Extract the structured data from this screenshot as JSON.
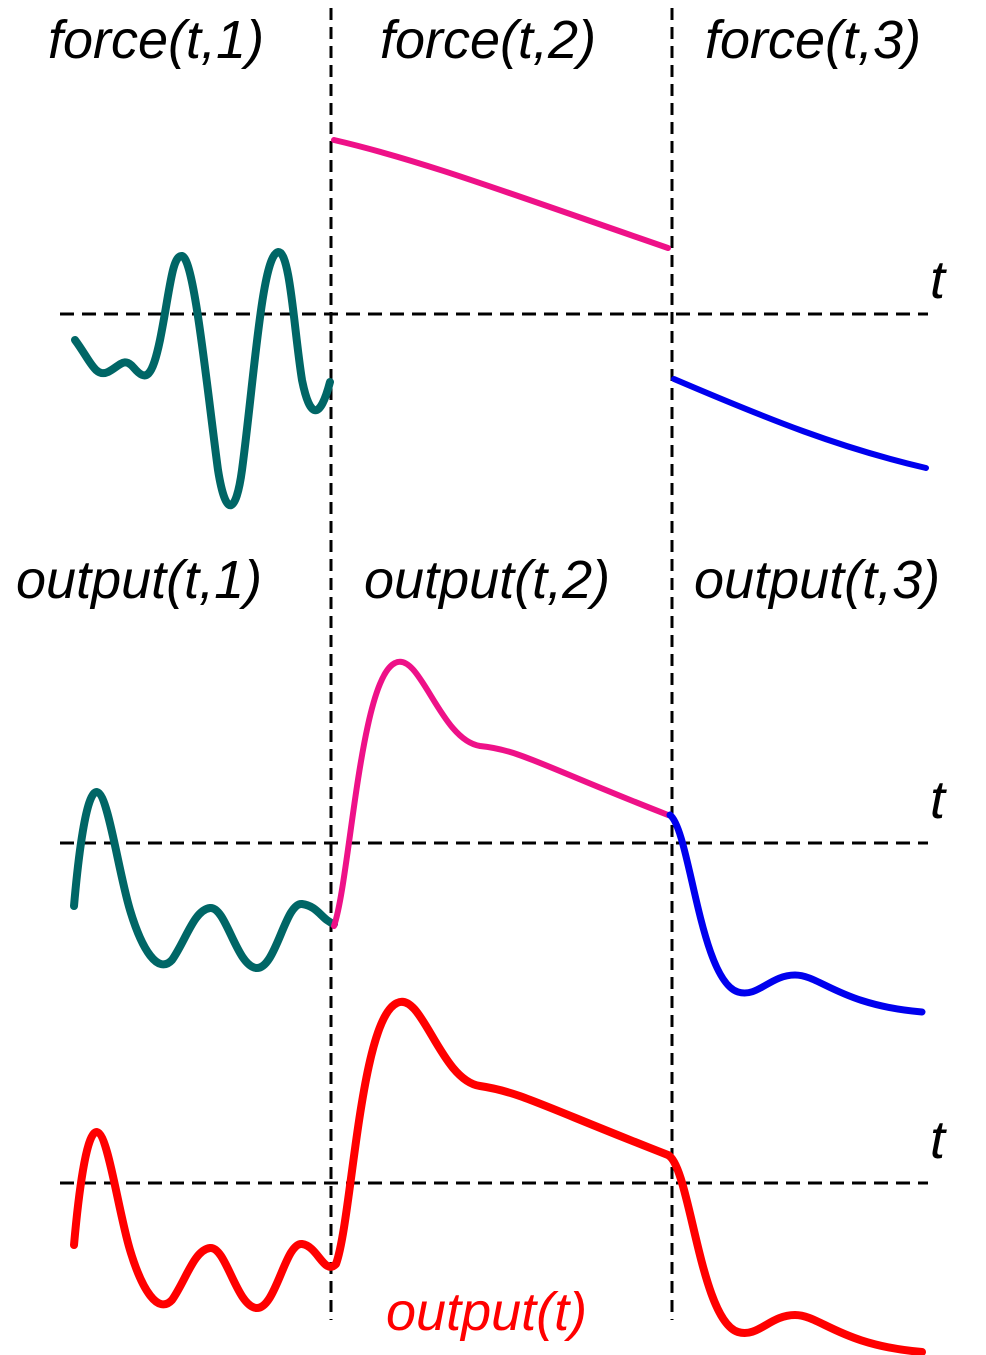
{
  "labels": {
    "force_1": "force(t,1)",
    "force_2": "force(t,2)",
    "force_3": "force(t,3)",
    "output_1": "output(t,1)",
    "output_2": "output(t,2)",
    "output_3": "output(t,3)",
    "output_total": "output(t)",
    "t_axis_top": "t",
    "t_axis_middle": "t",
    "t_axis_bottom": "t"
  },
  "colors": {
    "segment_1": "#006666",
    "segment_2": "#ee1188",
    "segment_3": "#0000ee",
    "total": "#ff0000",
    "axis": "#000000"
  }
}
